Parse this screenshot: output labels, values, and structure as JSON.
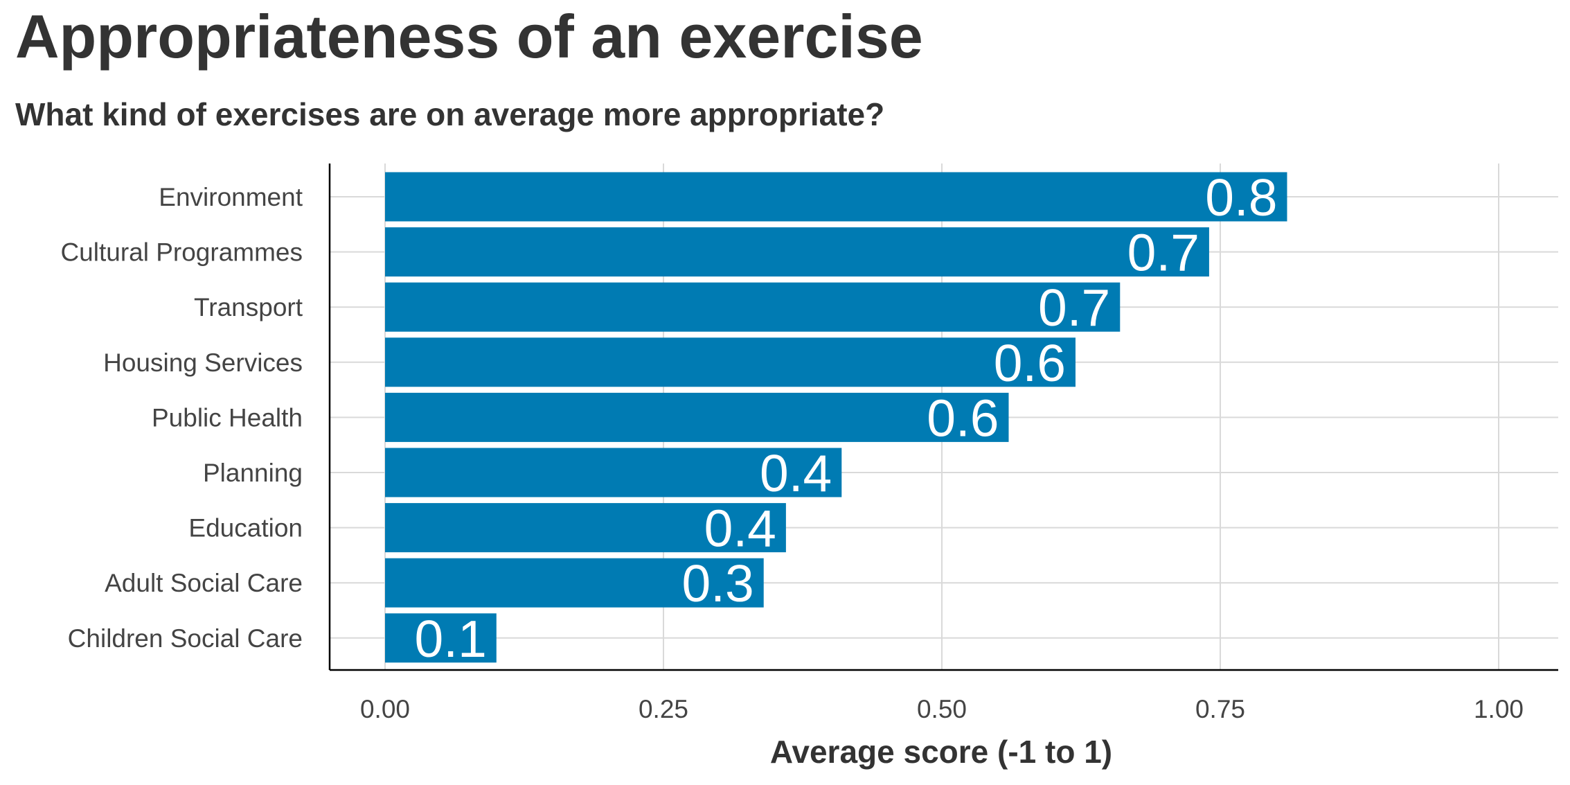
{
  "chart_data": {
    "type": "bar",
    "orientation": "horizontal",
    "title": "Appropriateness of an exercise",
    "subtitle": "What kind of exercises are on average more appropriate?",
    "xlabel": "Average score (-1 to 1)",
    "ylabel": "",
    "xlim": [
      0,
      1
    ],
    "grid": true,
    "bar_color": "#007bb3",
    "value_label_color": "#ffffff",
    "categories": [
      "Environment",
      "Cultural Programmes",
      "Transport",
      "Housing Services",
      "Public Health",
      "Planning",
      "Education",
      "Adult Social Care",
      "Children Social Care"
    ],
    "values": [
      0.81,
      0.74,
      0.66,
      0.62,
      0.56,
      0.41,
      0.36,
      0.34,
      0.1
    ],
    "value_labels": [
      "0.8",
      "0.7",
      "0.7",
      "0.6",
      "0.6",
      "0.4",
      "0.4",
      "0.3",
      "0.1"
    ],
    "x_ticks": [
      0,
      0.25,
      0.5,
      0.75,
      1
    ],
    "x_tick_labels": [
      "0.00",
      "0.25",
      "0.50",
      "0.75",
      "1.00"
    ]
  }
}
